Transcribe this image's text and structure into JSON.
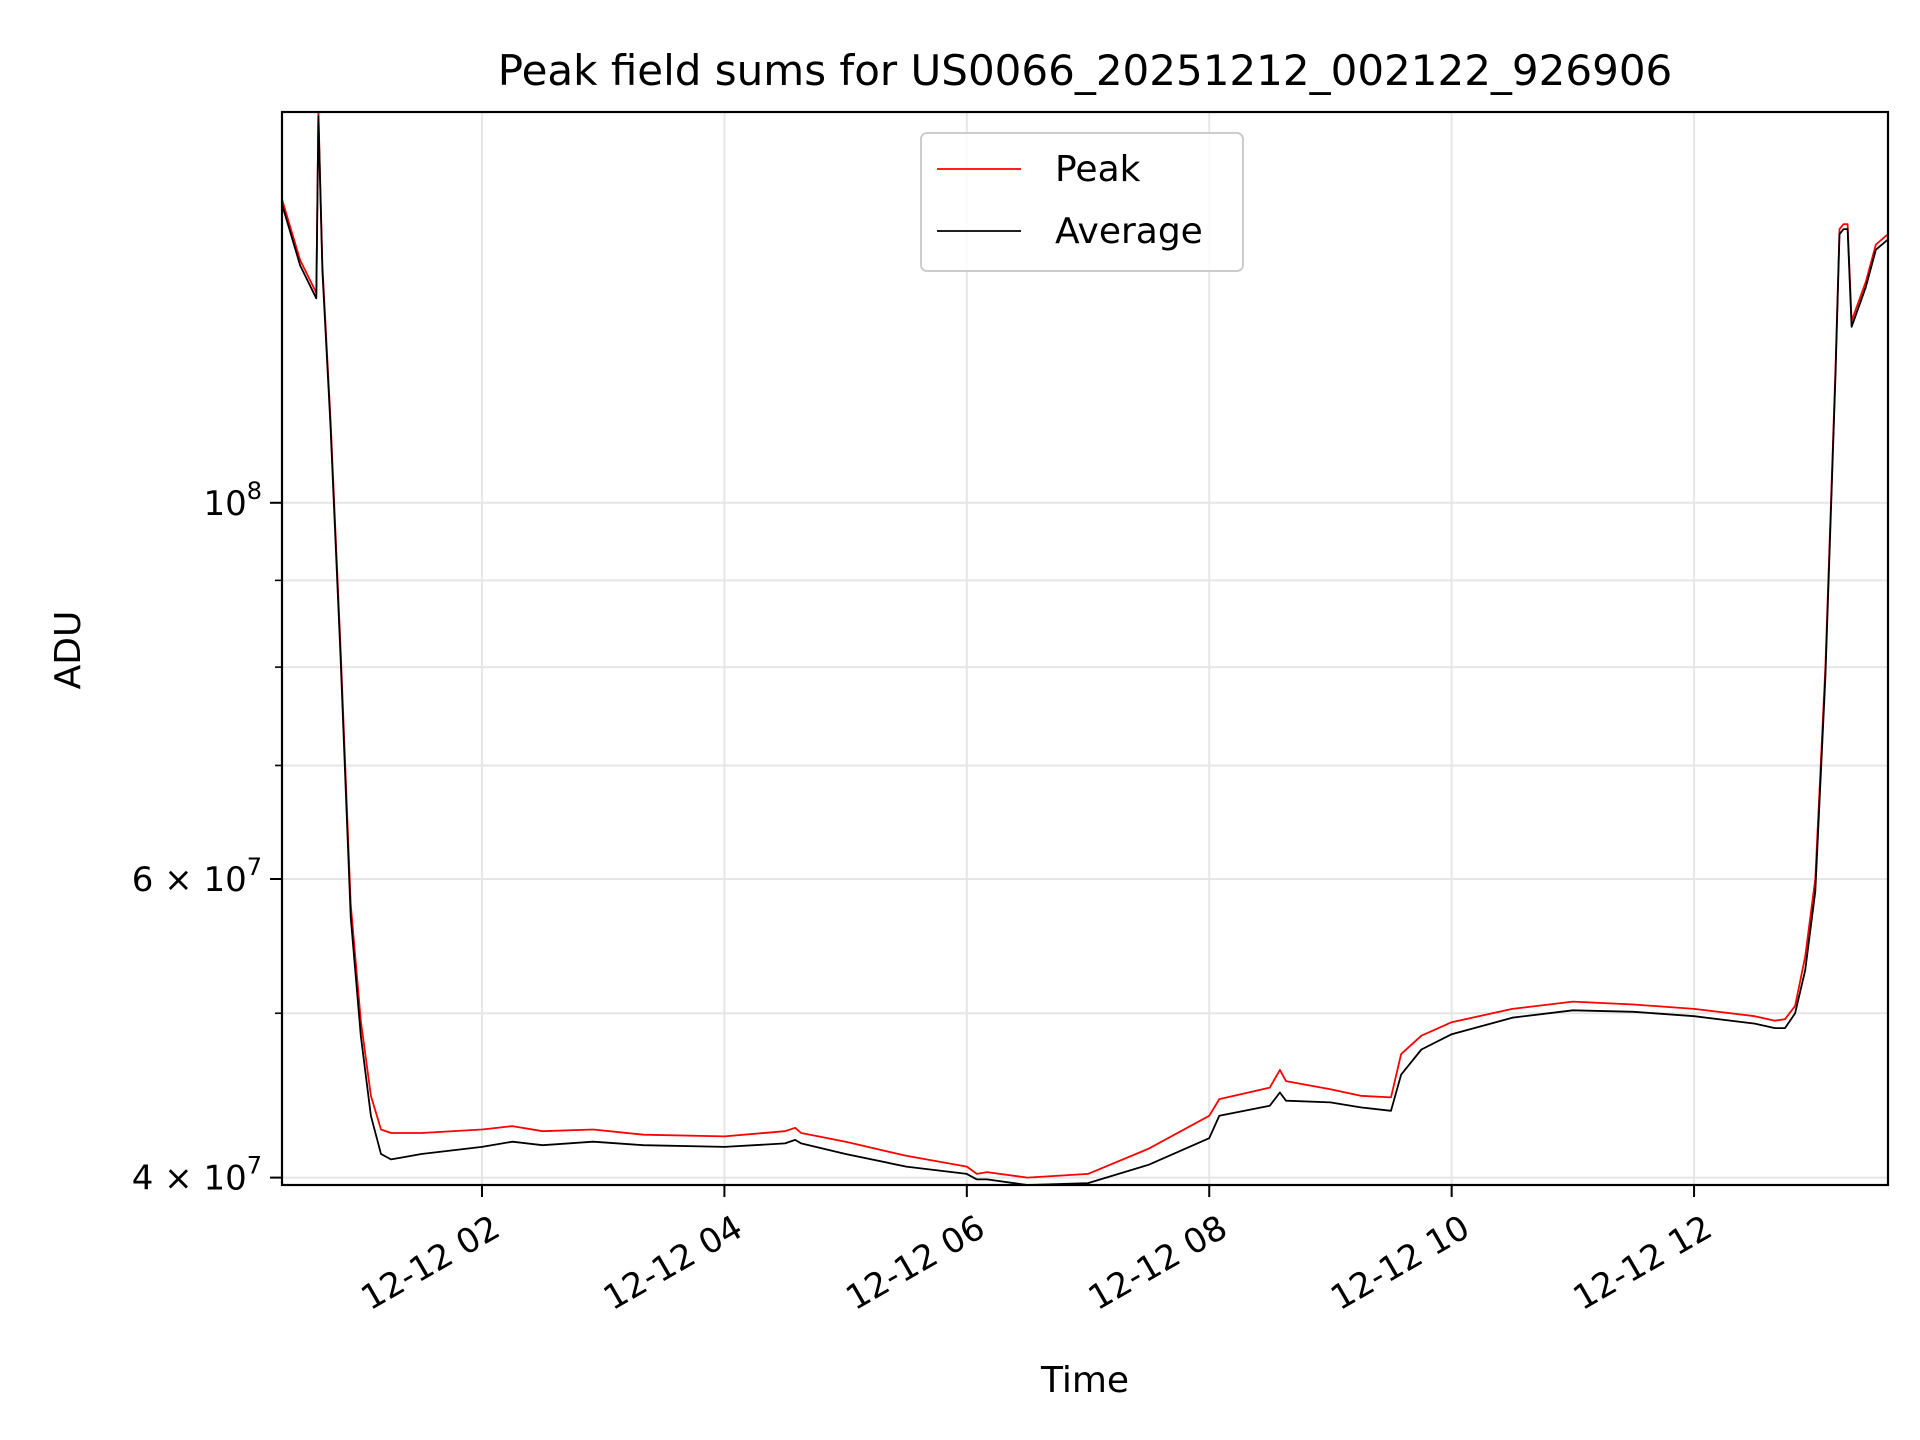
{
  "chart_data": {
    "type": "line",
    "title": "Peak field sums for US0066_20251212_002122_926906",
    "xlabel": "Time",
    "ylabel": "ADU",
    "y_scale": "log",
    "ylim": [
      39600000,
      170000000
    ],
    "xlim": [
      "2025-12-12 00:21",
      "2025-12-12 13:36"
    ],
    "grid": true,
    "legend_position": "top-center",
    "x_ticks": [
      {
        "label": "12-12 02",
        "value": "2025-12-12 02:00"
      },
      {
        "label": "12-12 04",
        "value": "2025-12-12 04:00"
      },
      {
        "label": "12-12 06",
        "value": "2025-12-12 06:00"
      },
      {
        "label": "12-12 08",
        "value": "2025-12-12 08:00"
      },
      {
        "label": "12-12 10",
        "value": "2025-12-12 10:00"
      },
      {
        "label": "12-12 12",
        "value": "2025-12-12 12:00"
      }
    ],
    "y_major_ticks": [
      {
        "base": "4",
        "exp": "7",
        "value": 40000000,
        "style": "times"
      },
      {
        "base": "6",
        "exp": "7",
        "value": 60000000,
        "style": "times"
      },
      {
        "base": "10",
        "exp": "8",
        "value": 100000000,
        "style": "power"
      }
    ],
    "y_minor_ticks": [
      50000000,
      70000000,
      80000000,
      90000000
    ],
    "series": [
      {
        "name": "Peak",
        "color": "#ff0000",
        "x": [
          "2025-12-12 00:21",
          "2025-12-12 00:30",
          "2025-12-12 00:38",
          "2025-12-12 00:39",
          "2025-12-12 00:41",
          "2025-12-12 00:45",
          "2025-12-12 00:50",
          "2025-12-12 00:55",
          "2025-12-12 01:00",
          "2025-12-12 01:05",
          "2025-12-12 01:10",
          "2025-12-12 01:15",
          "2025-12-12 01:20",
          "2025-12-12 01:30",
          "2025-12-12 02:00",
          "2025-12-12 02:15",
          "2025-12-12 02:30",
          "2025-12-12 02:55",
          "2025-12-12 03:20",
          "2025-12-12 04:00",
          "2025-12-12 04:30",
          "2025-12-12 04:35",
          "2025-12-12 04:38",
          "2025-12-12 05:00",
          "2025-12-12 05:30",
          "2025-12-12 06:00",
          "2025-12-12 06:05",
          "2025-12-12 06:10",
          "2025-12-12 06:30",
          "2025-12-12 07:00",
          "2025-12-12 07:30",
          "2025-12-12 08:00",
          "2025-12-12 08:05",
          "2025-12-12 08:30",
          "2025-12-12 08:35",
          "2025-12-12 08:38",
          "2025-12-12 09:00",
          "2025-12-12 09:15",
          "2025-12-12 09:30",
          "2025-12-12 09:35",
          "2025-12-12 09:45",
          "2025-12-12 10:00",
          "2025-12-12 10:30",
          "2025-12-12 11:00",
          "2025-12-12 11:30",
          "2025-12-12 12:00",
          "2025-12-12 12:30",
          "2025-12-12 12:40",
          "2025-12-12 12:45",
          "2025-12-12 12:50",
          "2025-12-12 12:55",
          "2025-12-12 13:00",
          "2025-12-12 13:05",
          "2025-12-12 13:10",
          "2025-12-12 13:12",
          "2025-12-12 13:14",
          "2025-12-12 13:16",
          "2025-12-12 13:18",
          "2025-12-12 13:25",
          "2025-12-12 13:30",
          "2025-12-12 13:36"
        ],
        "y": [
          151000000,
          139000000,
          133000000,
          170000000,
          138000000,
          112000000,
          82000000,
          58000000,
          49500000,
          44700000,
          42700000,
          42500000,
          42500000,
          42500000,
          42700000,
          42900000,
          42600000,
          42700000,
          42400000,
          42300000,
          42600000,
          42800000,
          42500000,
          42000000,
          41200000,
          40600000,
          40200000,
          40300000,
          40000000,
          40200000,
          41600000,
          43500000,
          44500000,
          45200000,
          46300000,
          45600000,
          45100000,
          44700000,
          44600000,
          47300000,
          48500000,
          49400000,
          50300000,
          50800000,
          50600000,
          50300000,
          49800000,
          49500000,
          49600000,
          50500000,
          54000000,
          60000000,
          80000000,
          120000000,
          145000000,
          146000000,
          146000000,
          128000000,
          135000000,
          142000000,
          144000000
        ]
      },
      {
        "name": "Average",
        "color": "#000000",
        "x": [
          "2025-12-12 00:21",
          "2025-12-12 00:30",
          "2025-12-12 00:38",
          "2025-12-12 00:39",
          "2025-12-12 00:41",
          "2025-12-12 00:45",
          "2025-12-12 00:50",
          "2025-12-12 00:55",
          "2025-12-12 01:00",
          "2025-12-12 01:05",
          "2025-12-12 01:10",
          "2025-12-12 01:15",
          "2025-12-12 01:20",
          "2025-12-12 01:30",
          "2025-12-12 02:00",
          "2025-12-12 02:15",
          "2025-12-12 02:30",
          "2025-12-12 02:55",
          "2025-12-12 03:20",
          "2025-12-12 04:00",
          "2025-12-12 04:30",
          "2025-12-12 04:35",
          "2025-12-12 04:38",
          "2025-12-12 05:00",
          "2025-12-12 05:30",
          "2025-12-12 06:00",
          "2025-12-12 06:05",
          "2025-12-12 06:10",
          "2025-12-12 06:30",
          "2025-12-12 07:00",
          "2025-12-12 07:30",
          "2025-12-12 08:00",
          "2025-12-12 08:05",
          "2025-12-12 08:30",
          "2025-12-12 08:35",
          "2025-12-12 08:38",
          "2025-12-12 09:00",
          "2025-12-12 09:15",
          "2025-12-12 09:30",
          "2025-12-12 09:35",
          "2025-12-12 09:45",
          "2025-12-12 10:00",
          "2025-12-12 10:30",
          "2025-12-12 11:00",
          "2025-12-12 11:30",
          "2025-12-12 12:00",
          "2025-12-12 12:30",
          "2025-12-12 12:40",
          "2025-12-12 12:45",
          "2025-12-12 12:50",
          "2025-12-12 12:55",
          "2025-12-12 13:00",
          "2025-12-12 13:05",
          "2025-12-12 13:10",
          "2025-12-12 13:12",
          "2025-12-12 13:14",
          "2025-12-12 13:16",
          "2025-12-12 13:18",
          "2025-12-12 13:25",
          "2025-12-12 13:30",
          "2025-12-12 13:36"
        ],
        "y": [
          150000000,
          138000000,
          132000000,
          169000000,
          137000000,
          111000000,
          81000000,
          57000000,
          48500000,
          43500000,
          41300000,
          41000000,
          41100000,
          41300000,
          41700000,
          42000000,
          41800000,
          42000000,
          41800000,
          41700000,
          41900000,
          42100000,
          41900000,
          41300000,
          40600000,
          40200000,
          39900000,
          39900000,
          39600000,
          39700000,
          40700000,
          42200000,
          43500000,
          44100000,
          44900000,
          44400000,
          44300000,
          44000000,
          43800000,
          46000000,
          47600000,
          48600000,
          49700000,
          50200000,
          50100000,
          49800000,
          49300000,
          49000000,
          49000000,
          50000000,
          53000000,
          59000000,
          79000000,
          119000000,
          144000000,
          145000000,
          145000000,
          127000000,
          134000000,
          141000000,
          143000000
        ]
      }
    ]
  }
}
